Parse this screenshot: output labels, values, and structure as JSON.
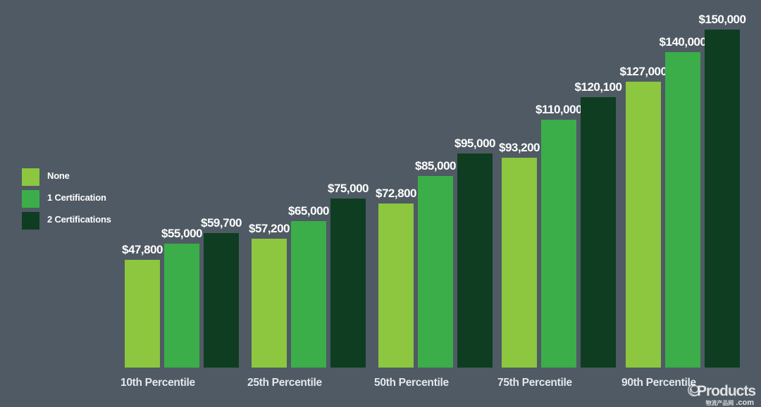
{
  "page": {
    "background_color": "#4f5a64",
    "value_label_color": "#ffffff",
    "category_label_color": "#e4e8eb"
  },
  "legend": {
    "items": [
      {
        "label": "None",
        "color": "#8dc63f"
      },
      {
        "label": "1 Certification",
        "color": "#3bae49"
      },
      {
        "label": "2 Certifications",
        "color": "#0e3d22"
      }
    ]
  },
  "chart_data": {
    "type": "bar",
    "title": "",
    "categories": [
      "10th Percentile",
      "25th Percentile",
      "50th Percentile",
      "75th Percentile",
      "90th Percentile"
    ],
    "series": [
      {
        "name": "None",
        "color": "#8dc63f",
        "values": [
          47800,
          57200,
          72800,
          93200,
          127000
        ],
        "labels": [
          "$47,800",
          "$57,200",
          "$72,800",
          "$93,200",
          "$127,000"
        ]
      },
      {
        "name": "1 Certification",
        "color": "#3bae49",
        "values": [
          55000,
          65000,
          85000,
          110000,
          140000
        ],
        "labels": [
          "$55,000",
          "$65,000",
          "$85,000",
          "$110,000",
          "$140,000"
        ]
      },
      {
        "name": "2 Certifications",
        "color": "#0e3d22",
        "values": [
          59700,
          75000,
          95000,
          120100,
          150000
        ],
        "labels": [
          "$59,700",
          "$75,000",
          "$95,000",
          "$120,100",
          "$150,000"
        ]
      }
    ],
    "ylim": [
      0,
      150000
    ],
    "value_prefix": "$",
    "grid": false,
    "legend_position": "left",
    "value_labels_shown": true,
    "axis_lines_shown": false
  },
  "watermark": {
    "name": "Products",
    "subtext": "物流产品网",
    "domain": ".com"
  }
}
